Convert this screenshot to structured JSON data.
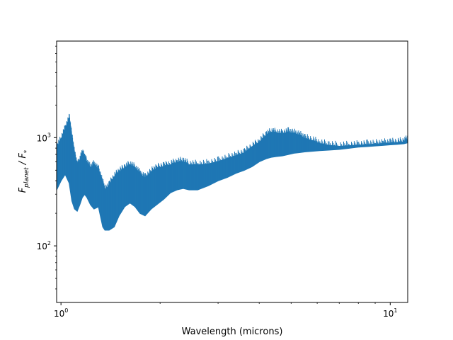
{
  "chart_data": {
    "type": "line",
    "title": "",
    "xlabel": "Wavelength (microns)",
    "ylabel_main": "F",
    "ylabel_sub": "planet",
    "ylabel_rest": " / F",
    "ylabel_star": "*",
    "xscale": "log",
    "yscale": "log",
    "xlim": [
      0.97,
      11.3
    ],
    "ylim": [
      30,
      7800
    ],
    "grid": false,
    "legend": "none",
    "line_color": "#1f77b4",
    "x_major_ticks": [
      {
        "value": 1,
        "base": "10",
        "exp": "0"
      },
      {
        "value": 10,
        "base": "10",
        "exp": "1"
      }
    ],
    "y_major_ticks": [
      {
        "value": 100,
        "base": "10",
        "exp": "2"
      },
      {
        "value": 1000,
        "base": "10",
        "exp": "3"
      }
    ],
    "series": [
      {
        "x": [
          0.97,
          1.0,
          1.03,
          1.06,
          1.08,
          1.1,
          1.12,
          1.14,
          1.16,
          1.18,
          1.2,
          1.23,
          1.26,
          1.3,
          1.34,
          1.36,
          1.4,
          1.45,
          1.5,
          1.56,
          1.62,
          1.68,
          1.74,
          1.8,
          1.88,
          1.95,
          2.05,
          2.15,
          2.25,
          2.35,
          2.45,
          2.6,
          2.8,
          3.0,
          3.2,
          3.4,
          3.6,
          3.8,
          4.0,
          4.2,
          4.35,
          4.5,
          4.7,
          4.9,
          5.1,
          5.3,
          5.5,
          5.8,
          6.1,
          6.5,
          7.0,
          7.5,
          8.0,
          8.5,
          9.0,
          9.5,
          10.0,
          10.5,
          11.0,
          11.3
        ],
        "high": [
          800,
          950,
          1200,
          1500,
          1000,
          700,
          550,
          600,
          720,
          650,
          580,
          520,
          560,
          500,
          380,
          320,
          360,
          430,
          480,
          520,
          560,
          520,
          460,
          420,
          480,
          520,
          540,
          560,
          590,
          600,
          560,
          560,
          570,
          600,
          640,
          680,
          720,
          820,
          900,
          1050,
          1120,
          1100,
          1080,
          1120,
          1090,
          1050,
          980,
          940,
          880,
          850,
          830,
          840,
          850,
          860,
          870,
          880,
          890,
          900,
          910,
          960
        ],
        "low": [
          330,
          400,
          460,
          380,
          260,
          220,
          210,
          240,
          280,
          300,
          280,
          240,
          220,
          230,
          150,
          140,
          140,
          150,
          190,
          230,
          250,
          230,
          200,
          190,
          220,
          240,
          270,
          310,
          330,
          340,
          330,
          330,
          360,
          400,
          430,
          470,
          500,
          540,
          600,
          640,
          660,
          670,
          680,
          700,
          720,
          730,
          740,
          750,
          760,
          770,
          780,
          800,
          820,
          830,
          840,
          850,
          860,
          870,
          880,
          900
        ]
      }
    ]
  }
}
